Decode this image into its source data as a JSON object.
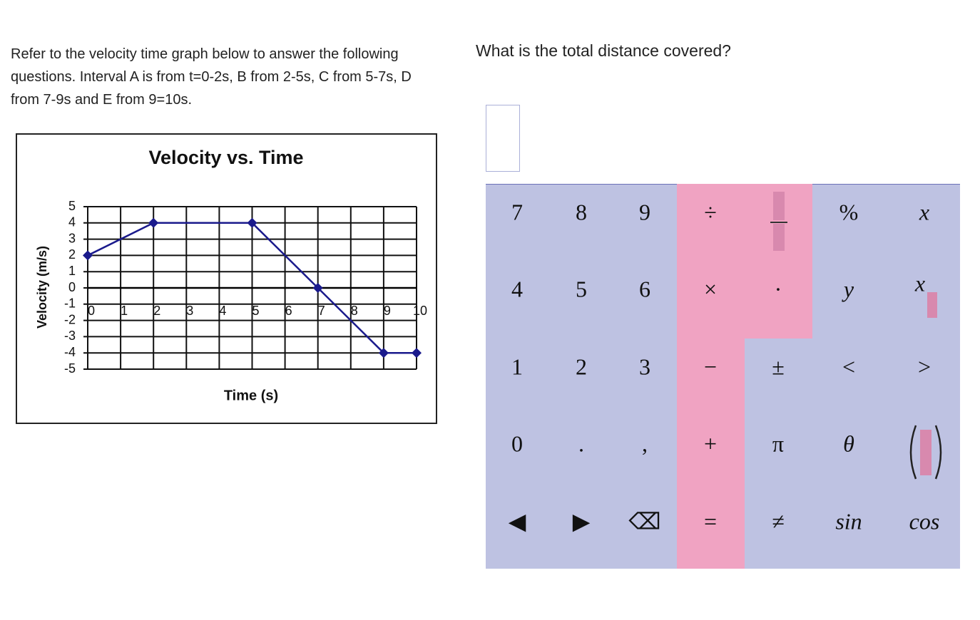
{
  "question": {
    "intro": "Refer to the velocity time graph below to answer the following questions. Interval A is from t=0-2s, B from 2-5s, C from 5-7s, D from 7-9s and E from 9=10s.",
    "prompt": "What is the total distance covered?"
  },
  "chart_data": {
    "type": "line",
    "title": "Velocity vs. Time",
    "x_label": "Time (s)",
    "y_label": "Velocity (m/s)",
    "x": [
      0,
      2,
      5,
      7,
      9,
      10
    ],
    "values": [
      2,
      4,
      4,
      0,
      -4,
      -4
    ],
    "color": "#1a1a8c",
    "xlim": [
      0,
      10
    ],
    "ylim": [
      -5,
      5
    ],
    "xticks": [
      0,
      1,
      2,
      3,
      4,
      5,
      6,
      7,
      8,
      9,
      10
    ],
    "yticks": [
      -5,
      -4,
      -3,
      -2,
      -1,
      0,
      1,
      2,
      3,
      4,
      5
    ],
    "grid": true
  },
  "keypad": {
    "rows": [
      [
        "7",
        "8",
        "9",
        "÷",
        "%",
        "x"
      ],
      [
        "4",
        "5",
        "6",
        "×",
        "·",
        "y",
        "x"
      ],
      [
        "1",
        "2",
        "3",
        "−",
        "±",
        "<",
        ">"
      ],
      [
        "0",
        ".",
        ",",
        "+",
        "π",
        "θ"
      ],
      [
        "◀",
        "▶",
        "⌫",
        "=",
        "≠",
        "sin",
        "cos"
      ]
    ]
  }
}
